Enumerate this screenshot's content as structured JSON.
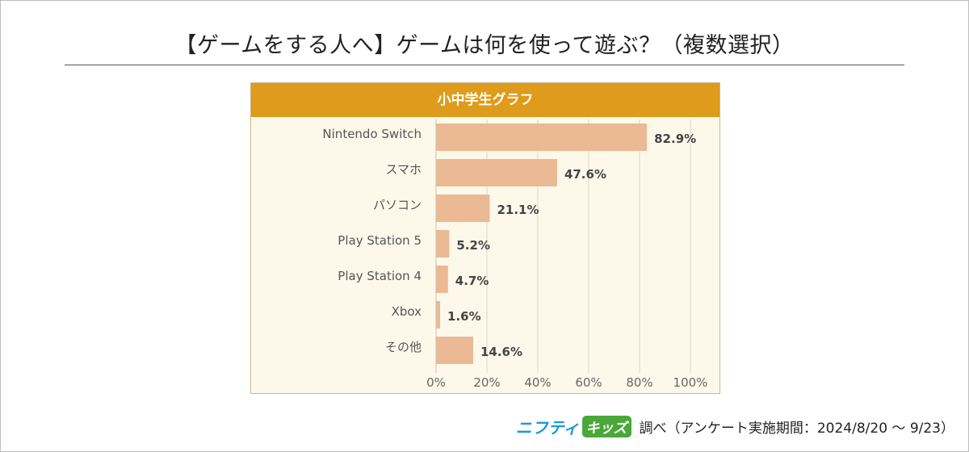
{
  "title": "【ゲームをする人へ】ゲームは何を使って遊ぶ？（複数選択）",
  "chart_header": "小中学生グラフ",
  "colors": {
    "header": "#df9b1b",
    "bar": "#ebb994",
    "panel": "#fdf9ea",
    "grid": "#dcd6c4"
  },
  "chart_data": {
    "type": "bar",
    "orientation": "horizontal",
    "title": "小中学生グラフ",
    "categories": [
      "Nintendo Switch",
      "スマホ",
      "パソコン",
      "Play Station 5",
      "Play Station 4",
      "Xbox",
      "その他"
    ],
    "values": [
      82.9,
      47.6,
      21.1,
      5.2,
      4.7,
      1.6,
      14.6
    ],
    "data_labels": [
      "82.9%",
      "47.6%",
      "21.1%",
      "5.2%",
      "4.7%",
      "1.6%",
      "14.6%"
    ],
    "xlim": [
      0,
      100
    ],
    "xticks": [
      0,
      20,
      40,
      60,
      80,
      100
    ],
    "xtick_labels": [
      "0%",
      "20%",
      "40%",
      "60%",
      "80%",
      "100%"
    ],
    "xlabel": "",
    "ylabel": "",
    "grid": true
  },
  "footer": {
    "logo_part1": "ニフティ",
    "logo_part2": "キッズ",
    "note": "調べ（アンケート実施期間：2024/8/20 ～ 9/23）"
  }
}
